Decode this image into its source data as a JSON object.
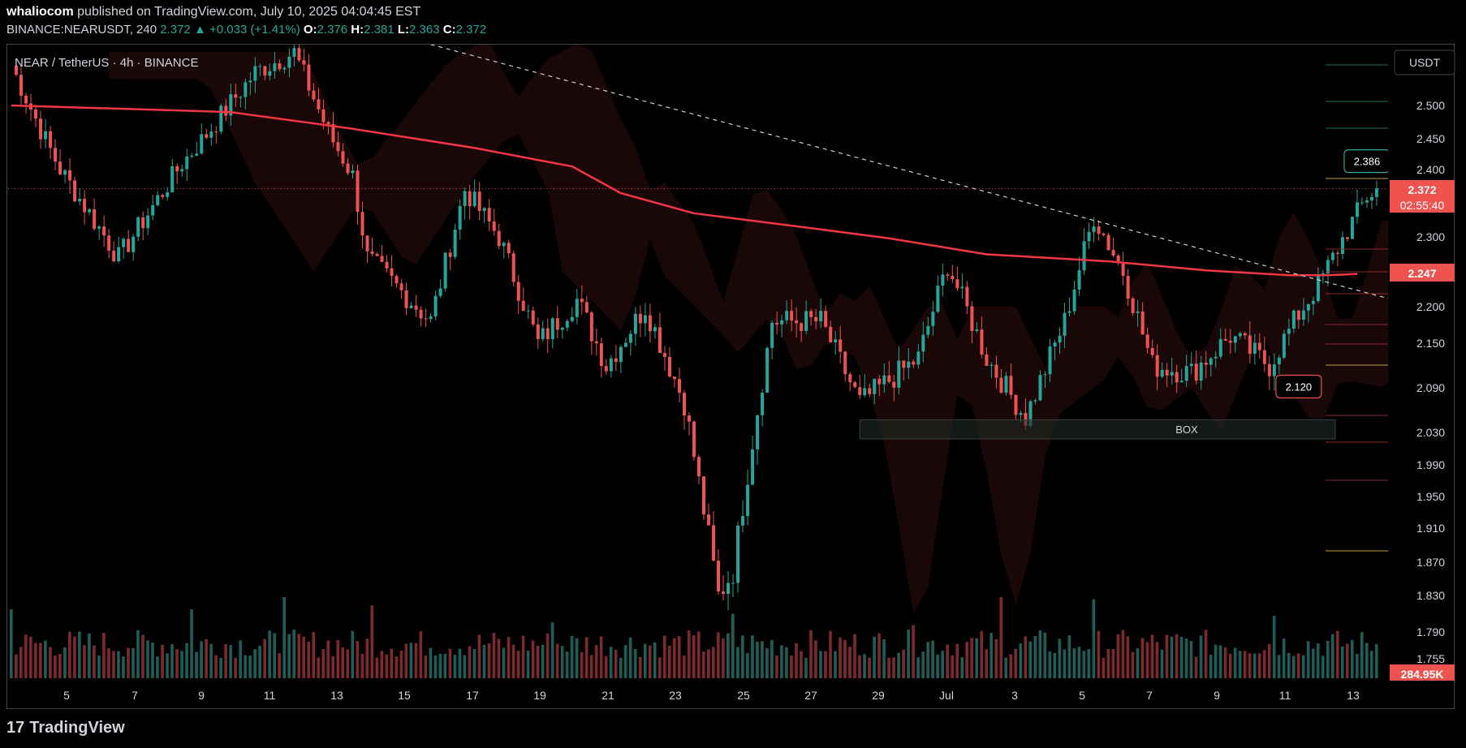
{
  "header": {
    "author": "whaliocom",
    "published_text": "published on TradingView.com, July 10, 2025 04:04:45 EST"
  },
  "ohlc": {
    "symbol": "BINANCE:NEARUSDT, 240",
    "last": "2.372",
    "change": "+0.033 (+1.41%)",
    "o_label": "O:",
    "o": "2.376",
    "h_label": "H:",
    "h": "2.381",
    "l_label": "L:",
    "l": "2.363",
    "c_label": "C:",
    "c": "2.372"
  },
  "chart_title": "NEAR / TetherUS · 4h · BINANCE",
  "currency_button": "USDT",
  "price_badges": {
    "last": "2.372",
    "countdown": "02:55:40",
    "ma": "2.247",
    "volume": "284.95K"
  },
  "annotations": {
    "high_label": "2.386",
    "low_label": "2.120",
    "box_label": "BOX"
  },
  "footer": {
    "brand": "TradingView",
    "logo_icon": "tradingview-logo-icon"
  },
  "colors": {
    "up": "#26a69a",
    "down": "#ef5350",
    "ma": "#f23645",
    "vol_up": "#1f5e58",
    "vol_down": "#7c2a2d",
    "bg": "#000000"
  },
  "chart_data": {
    "type": "candlestick",
    "x_tick_labels": [
      "5",
      "7",
      "9",
      "11",
      "13",
      "15",
      "17",
      "19",
      "21",
      "23",
      "25",
      "27",
      "29",
      "Jul",
      "3",
      "5",
      "7",
      "9",
      "11",
      "13"
    ],
    "y_tick_labels": [
      "2.500",
      "2.450",
      "2.400",
      "2.300",
      "2.200",
      "2.150",
      "2.090",
      "2.030",
      "1.990",
      "1.950",
      "1.910",
      "1.870",
      "1.830",
      "1.790",
      "1.755"
    ],
    "ylim": [
      1.745,
      2.53
    ],
    "grid": false,
    "ohlc_anchors": [
      [
        0,
        2.56
      ],
      [
        10,
        2.4
      ],
      [
        22,
        2.27
      ],
      [
        35,
        2.41
      ],
      [
        50,
        2.55
      ],
      [
        58,
        2.58
      ],
      [
        65,
        2.46
      ],
      [
        70,
        2.39
      ],
      [
        73,
        2.27
      ],
      [
        86,
        2.18
      ],
      [
        93,
        2.37
      ],
      [
        100,
        2.3
      ],
      [
        108,
        2.15
      ],
      [
        116,
        2.21
      ],
      [
        122,
        2.12
      ],
      [
        130,
        2.2
      ],
      [
        138,
        2.07
      ],
      [
        145,
        1.83
      ],
      [
        148,
        1.86
      ],
      [
        156,
        2.18
      ],
      [
        166,
        2.18
      ],
      [
        174,
        2.07
      ],
      [
        186,
        2.13
      ],
      [
        192,
        2.26
      ],
      [
        200,
        2.13
      ],
      [
        208,
        2.05
      ],
      [
        216,
        2.18
      ],
      [
        222,
        2.33
      ],
      [
        228,
        2.25
      ],
      [
        234,
        2.12
      ],
      [
        242,
        2.11
      ],
      [
        250,
        2.16
      ],
      [
        258,
        2.12
      ],
      [
        264,
        2.19
      ],
      [
        268,
        2.23
      ],
      [
        274,
        2.31
      ],
      [
        278,
        2.36
      ],
      [
        280,
        2.37
      ]
    ],
    "candle_count": 281,
    "ma_line": [
      [
        0,
        2.5
      ],
      [
        45,
        2.49
      ],
      [
        70,
        2.465
      ],
      [
        95,
        2.435
      ],
      [
        115,
        2.405
      ],
      [
        125,
        2.365
      ],
      [
        140,
        2.335
      ],
      [
        165,
        2.312
      ],
      [
        180,
        2.298
      ],
      [
        200,
        2.275
      ],
      [
        225,
        2.265
      ],
      [
        245,
        2.252
      ],
      [
        262,
        2.245
      ],
      [
        270,
        2.245
      ],
      [
        276,
        2.247
      ]
    ],
    "trendline": [
      [
        20,
        2.72
      ],
      [
        300,
        2.18
      ]
    ],
    "box": {
      "x0": 174,
      "x1": 300,
      "y0": 2.022,
      "y1": 2.047
    },
    "high_marker": {
      "i": 278,
      "price": 2.386
    },
    "low_marker": {
      "i": 264,
      "price": 2.12
    },
    "current_price": 2.372,
    "volume_scale_max": 1.0
  }
}
